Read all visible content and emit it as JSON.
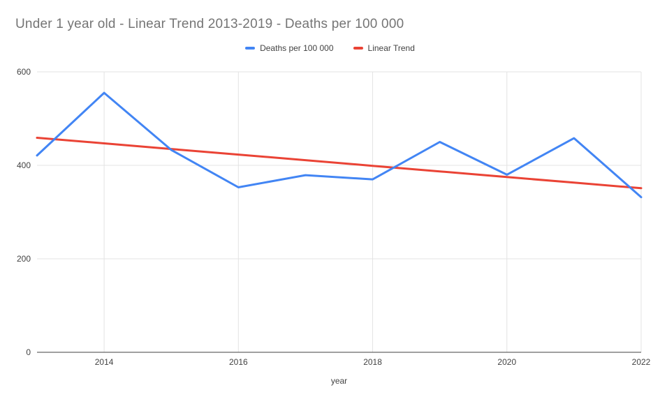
{
  "title": "Under 1 year old - Linear Trend 2013-2019 - Deaths per 100 000",
  "legend": [
    {
      "label": "Deaths per 100 000",
      "color": "#4285f4"
    },
    {
      "label": "Linear Trend",
      "color": "#ea4335"
    }
  ],
  "colors": {
    "series_blue": "#4285f4",
    "series_red": "#ea4335",
    "title_text": "#757575",
    "axis_text": "#424242",
    "gridline": "#e3e3e3",
    "axis_line": "#424242",
    "background": "#ffffff"
  },
  "chart_data": {
    "type": "line",
    "title": "Under 1 year old - Linear Trend 2013-2019 - Deaths per 100 000",
    "xlabel": "year",
    "ylabel": "",
    "x": [
      2013,
      2014,
      2015,
      2016,
      2017,
      2018,
      2019,
      2020,
      2021,
      2022
    ],
    "series": [
      {
        "name": "Deaths per 100 000",
        "color": "#4285f4",
        "values": [
          421,
          555,
          433,
          353,
          379,
          370,
          450,
          380,
          458,
          332
        ]
      },
      {
        "name": "Linear Trend",
        "color": "#ea4335",
        "values": [
          459,
          447,
          435,
          423,
          411,
          399,
          387,
          375,
          363,
          351
        ]
      }
    ],
    "xlim": [
      2013,
      2022
    ],
    "ylim": [
      0,
      600
    ],
    "x_ticks": [
      2014,
      2016,
      2018,
      2020,
      2022
    ],
    "y_ticks": [
      0,
      200,
      400,
      600
    ],
    "grid": true,
    "legend_position": "top"
  }
}
